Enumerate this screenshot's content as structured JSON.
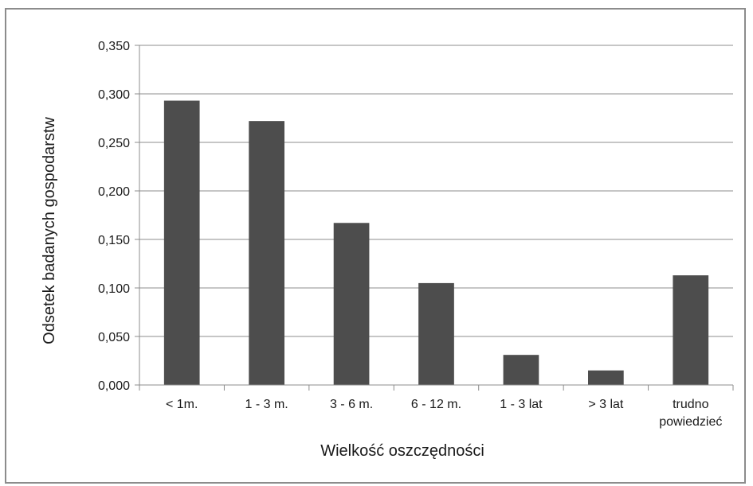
{
  "chart_data": {
    "type": "bar",
    "title": "",
    "xlabel": "Wielkość oszczędności",
    "ylabel": "Odsetek badanych gospodarstw",
    "categories": [
      "< 1m.",
      "1 - 3 m.",
      "3 - 6 m.",
      "6 - 12 m.",
      "1 - 3 lat",
      "> 3 lat",
      "trudno powiedzieć"
    ],
    "category_lines": [
      [
        "< 1m."
      ],
      [
        "1 - 3 m."
      ],
      [
        "3 - 6 m."
      ],
      [
        "6 - 12 m."
      ],
      [
        "1 - 3 lat"
      ],
      [
        "> 3 lat"
      ],
      [
        "trudno",
        "powiedzieć"
      ]
    ],
    "values": [
      0.293,
      0.272,
      0.167,
      0.105,
      0.031,
      0.015,
      0.113
    ],
    "ylim": [
      0,
      0.35
    ],
    "yticks": [
      0.0,
      0.05,
      0.1,
      0.15,
      0.2,
      0.25,
      0.3,
      0.35
    ],
    "ytick_labels": [
      "0,000",
      "0,050",
      "0,100",
      "0,150",
      "0,200",
      "0,250",
      "0,300",
      "0,350"
    ],
    "grid": true,
    "legend": "none",
    "colors": {
      "bar": "#4d4d4d",
      "grid": "#8c8c8c",
      "axis": "#8c8c8c",
      "text": "#1a1a1a"
    }
  }
}
